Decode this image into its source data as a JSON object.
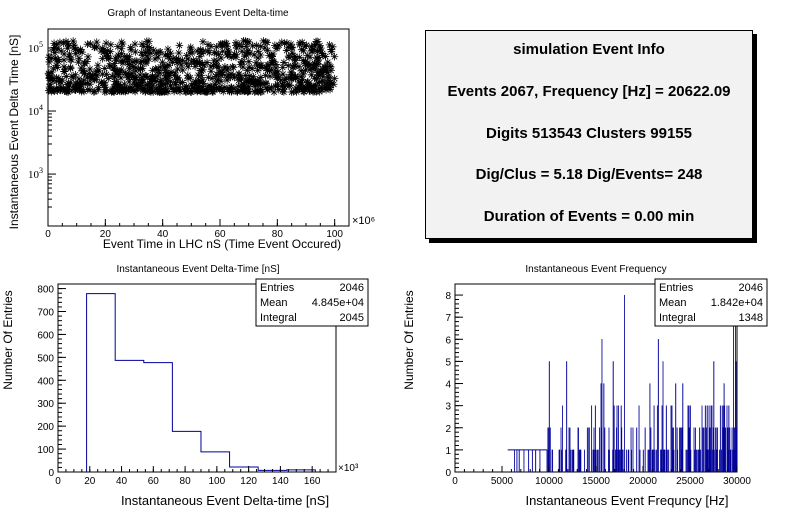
{
  "colors": {
    "hist_line": "#000099",
    "hist_fill": "#000099",
    "info_bg": "#f2f2f2"
  },
  "info_box": {
    "title": "simulation Event Info",
    "lines": [
      "Events 2067, Frequency [Hz] = 20622.09",
      "Digits 513543 Clusters 99155",
      "Dig/Clus = 5.18 Dig/Events= 248",
      "Duration of Events = 0.00 min"
    ]
  },
  "chart_data": [
    {
      "type": "scatter",
      "title": "Graph of Instantaneous Event Delta-time",
      "xlabel": "Event Time in LHC nS (Time Event Occured)",
      "ylabel": "Instantaneous Event Delta Time [nS]",
      "x_exponent": "×10⁶",
      "xlim": [
        0,
        105
      ],
      "ylim": [
        150,
        200000
      ],
      "yscale": "log",
      "xticks": [
        "0",
        "20",
        "40",
        "60",
        "80",
        "100"
      ],
      "yticks": [
        {
          "base": "10",
          "exp": "3",
          "value": 1000
        },
        {
          "base": "10",
          "exp": "4",
          "value": 10000
        },
        {
          "base": "10",
          "exp": "5",
          "value": 100000
        }
      ],
      "marker": "asterisk",
      "point_band": {
        "x_range": [
          0,
          100
        ],
        "y_range": [
          20000,
          130000
        ],
        "approx_count": 2067
      }
    },
    {
      "type": "bar",
      "title": "Instantaneous Event Delta-Time [nS]",
      "xlabel": "Instantaneous Event Delta-time [nS]",
      "ylabel": "Number Of Entries",
      "x_exponent": "×10³",
      "xlim": [
        0,
        175
      ],
      "ylim": [
        0,
        820
      ],
      "xticks": [
        "0",
        "20",
        "40",
        "60",
        "80",
        "100",
        "120",
        "140",
        "160"
      ],
      "yticks": [
        "0",
        "100",
        "200",
        "300",
        "400",
        "500",
        "600",
        "700",
        "800"
      ],
      "bins": [
        {
          "x0": 18,
          "x1": 36,
          "y": 778
        },
        {
          "x0": 36,
          "x1": 54,
          "y": 487
        },
        {
          "x0": 54,
          "x1": 72,
          "y": 477
        },
        {
          "x0": 72,
          "x1": 90,
          "y": 177
        },
        {
          "x0": 90,
          "x1": 108,
          "y": 88
        },
        {
          "x0": 108,
          "x1": 126,
          "y": 22
        },
        {
          "x0": 126,
          "x1": 144,
          "y": 7
        },
        {
          "x0": 144,
          "x1": 162,
          "y": 9
        }
      ],
      "stats": [
        {
          "label": "Entries",
          "value": "2046"
        },
        {
          "label": "Mean",
          "value": "4.845e+04"
        },
        {
          "label": "Integral",
          "value": "2045"
        }
      ]
    },
    {
      "type": "bar",
      "title": "Instantaneous Event Frequency",
      "xlabel": "Instantaneous Event Frequncy [Hz]",
      "ylabel": "Number Of Entries",
      "xlim": [
        0,
        30000
      ],
      "ylim": [
        0,
        8.5
      ],
      "xticks": [
        "0",
        "5000",
        "10000",
        "15000",
        "20000",
        "25000",
        "30000"
      ],
      "yticks": [
        "0",
        "1",
        "2",
        "3",
        "4",
        "5",
        "6",
        "7",
        "8"
      ],
      "bin_width": 50,
      "peak_bins": [
        {
          "x": 18000,
          "y": 8
        },
        {
          "x": 15600,
          "y": 6
        },
        {
          "x": 21600,
          "y": 6
        },
        {
          "x": 16800,
          "y": 5
        },
        {
          "x": 29600,
          "y": 7
        },
        {
          "x": 29800,
          "y": 8
        }
      ],
      "stats": [
        {
          "label": "Entries",
          "value": "2046"
        },
        {
          "label": "Mean",
          "value": "1.842e+04"
        },
        {
          "label": "Integral",
          "value": "1348"
        }
      ]
    }
  ]
}
